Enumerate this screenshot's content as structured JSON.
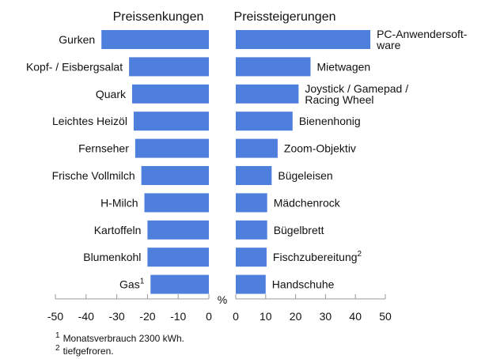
{
  "chart_data": [
    {
      "type": "hbar",
      "title": "Preissenkungen",
      "color": "#4f7fdc",
      "xlabel": "%",
      "categories": [
        [
          "Gurken"
        ],
        [
          "Kopf- / Eisbergsalat"
        ],
        [
          "Quark"
        ],
        [
          "Leichtes Heizöl"
        ],
        [
          "Fernseher"
        ],
        [
          "Frische Vollmilch"
        ],
        [
          "H-Milch"
        ],
        [
          "Kartoffeln"
        ],
        [
          "Blumenkohl"
        ],
        [
          "Gas"
        ]
      ],
      "category_notes": [
        null,
        null,
        null,
        null,
        null,
        null,
        null,
        null,
        null,
        "1"
      ],
      "values": [
        -35,
        -26,
        -25,
        -24.5,
        -24,
        -22,
        -21,
        -20,
        -20,
        -19
      ],
      "xlim": [
        -50,
        0
      ],
      "xticks": [
        -50,
        -40,
        -30,
        -20,
        -10,
        0
      ]
    },
    {
      "type": "hbar",
      "title": "Preissteigerungen",
      "color": "#4f7fdc",
      "categories": [
        [
          "PC-Anwendersoft-",
          "ware"
        ],
        [
          "Mietwagen"
        ],
        [
          "Joystick / Gamepad /",
          "Racing Wheel"
        ],
        [
          "Bienenhonig"
        ],
        [
          "Zoom-Objektiv"
        ],
        [
          "Bügeleisen"
        ],
        [
          "Mädchenrock"
        ],
        [
          "Bügelbrett"
        ],
        [
          "Fischzubereitung"
        ],
        [
          "Handschuhe"
        ]
      ],
      "category_notes": [
        null,
        null,
        null,
        null,
        null,
        null,
        null,
        null,
        "2",
        null
      ],
      "values": [
        45,
        25,
        21,
        19,
        14,
        12,
        10.5,
        10.5,
        10.3,
        10
      ],
      "xlim": [
        0,
        50
      ],
      "xticks": [
        0,
        10,
        20,
        30,
        40,
        50
      ]
    }
  ],
  "footnotes": [
    {
      "mark": "1",
      "text": "Monatsverbrauch 2300 kWh."
    },
    {
      "mark": "2",
      "text": "tiefgefroren."
    }
  ]
}
